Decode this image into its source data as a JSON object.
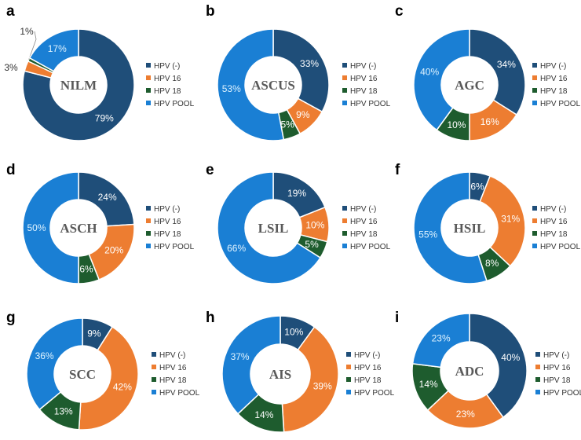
{
  "colors": {
    "HPV (-)": "#1f4e79",
    "HPV 16": "#ed7d31",
    "HPV 18": "#1e5c2e",
    "HPV POOL": "#1a7fd4"
  },
  "chart_data": [
    {
      "type": "pie",
      "panel": "a",
      "center": "NILM",
      "slices": [
        {
          "name": "HPV (-)",
          "value": 79,
          "label": "79%"
        },
        {
          "name": "HPV 16",
          "value": 3,
          "label": "3%"
        },
        {
          "name": "HPV 18",
          "value": 1,
          "label": "1%"
        },
        {
          "name": "HPV POOL",
          "value": 17,
          "label": "17%"
        }
      ],
      "legend": [
        "HPV (-)",
        "HPV 16",
        "HPV 18",
        "HPV POOL"
      ]
    },
    {
      "type": "pie",
      "panel": "b",
      "center": "ASCUS",
      "slices": [
        {
          "name": "HPV (-)",
          "value": 33,
          "label": "33%"
        },
        {
          "name": "HPV 16",
          "value": 9,
          "label": "9%"
        },
        {
          "name": "HPV 18",
          "value": 5,
          "label": "5%"
        },
        {
          "name": "HPV POOL",
          "value": 53,
          "label": "53%"
        }
      ],
      "legend": [
        "HPV (-)",
        "HPV 16",
        "HPV 18",
        "HPV POOL"
      ]
    },
    {
      "type": "pie",
      "panel": "c",
      "center": "AGC",
      "slices": [
        {
          "name": "HPV (-)",
          "value": 34,
          "label": "34%"
        },
        {
          "name": "HPV 16",
          "value": 16,
          "label": "16%"
        },
        {
          "name": "HPV 18",
          "value": 10,
          "label": "10%"
        },
        {
          "name": "HPV POOL",
          "value": 40,
          "label": "40%"
        }
      ],
      "legend": [
        "HPV (-)",
        "HPV 16",
        "HPV 18",
        "HPV POOL"
      ]
    },
    {
      "type": "pie",
      "panel": "d",
      "center": "ASCH",
      "slices": [
        {
          "name": "HPV (-)",
          "value": 24,
          "label": "24%"
        },
        {
          "name": "HPV 16",
          "value": 20,
          "label": "20%"
        },
        {
          "name": "HPV 18",
          "value": 6,
          "label": "6%"
        },
        {
          "name": "HPV POOL",
          "value": 50,
          "label": "50%"
        }
      ],
      "legend": [
        "HPV (-)",
        "HPV 16",
        "HPV 18",
        "HPV POOL"
      ]
    },
    {
      "type": "pie",
      "panel": "e",
      "center": "LSIL",
      "slices": [
        {
          "name": "HPV (-)",
          "value": 19,
          "label": "19%"
        },
        {
          "name": "HPV 16",
          "value": 10,
          "label": "10%"
        },
        {
          "name": "HPV 18",
          "value": 5,
          "label": "5%"
        },
        {
          "name": "HPV POOL",
          "value": 66,
          "label": "66%"
        }
      ],
      "legend": [
        "HPV (-)",
        "HPV 16",
        "HPV 18",
        "HPV POOL"
      ]
    },
    {
      "type": "pie",
      "panel": "f",
      "center": "HSIL",
      "slices": [
        {
          "name": "HPV (-)",
          "value": 6,
          "label": "6%"
        },
        {
          "name": "HPV 16",
          "value": 31,
          "label": "31%"
        },
        {
          "name": "HPV 18",
          "value": 8,
          "label": "8%"
        },
        {
          "name": "HPV POOL",
          "value": 55,
          "label": "55%"
        }
      ],
      "legend": [
        "HPV (-)",
        "HPV 16",
        "HPV 18",
        "HPV POOL"
      ]
    },
    {
      "type": "pie",
      "panel": "g",
      "center": "SCC",
      "slices": [
        {
          "name": "HPV (-)",
          "value": 9,
          "label": "9%"
        },
        {
          "name": "HPV 16",
          "value": 42,
          "label": "42%"
        },
        {
          "name": "HPV 18",
          "value": 13,
          "label": "13%"
        },
        {
          "name": "HPV POOL",
          "value": 36,
          "label": "36%"
        }
      ],
      "legend": [
        "HPV (-)",
        "HPV 16",
        "HPV 18",
        "HPV POOL"
      ]
    },
    {
      "type": "pie",
      "panel": "h",
      "center": "AIS",
      "slices": [
        {
          "name": "HPV (-)",
          "value": 10,
          "label": "10%"
        },
        {
          "name": "HPV 16",
          "value": 39,
          "label": "39%"
        },
        {
          "name": "HPV 18",
          "value": 14,
          "label": "14%"
        },
        {
          "name": "HPV POOL",
          "value": 37,
          "label": "37%"
        }
      ],
      "legend": [
        "HPV (-)",
        "HPV 16",
        "HPV 18",
        "HPV POOL"
      ]
    },
    {
      "type": "pie",
      "panel": "i",
      "center": "ADC",
      "slices": [
        {
          "name": "HPV (-)",
          "value": 40,
          "label": "40%"
        },
        {
          "name": "HPV 16",
          "value": 23,
          "label": "23%"
        },
        {
          "name": "HPV 18",
          "value": 14,
          "label": "14%"
        },
        {
          "name": "HPV POOL",
          "value": 23,
          "label": "23%"
        }
      ],
      "legend": [
        "HPV (-)",
        "HPV 16",
        "HPV 18",
        "HPV POOL"
      ]
    }
  ]
}
